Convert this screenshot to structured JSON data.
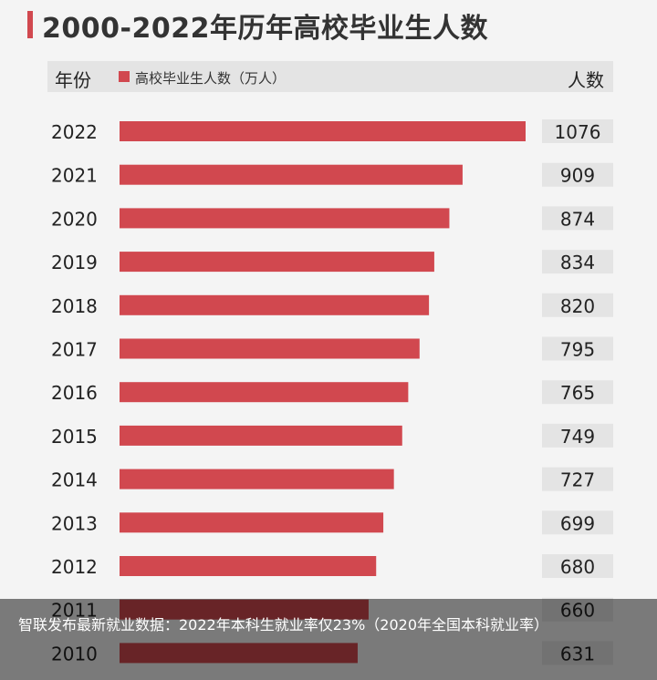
{
  "title": "2000-2022年历年高校毕业生人数",
  "header": {
    "year_label": "年份",
    "legend_label": "高校毕业生人数（万人）",
    "count_label": "人数"
  },
  "colors": {
    "bar": "#d1484f",
    "title_accent": "#d1484f",
    "value_box": "#e4e4e4"
  },
  "chart_data": {
    "type": "bar",
    "orientation": "horizontal",
    "series": [
      {
        "name": "高校毕业生人数（万人）",
        "values": [
          1076,
          909,
          874,
          834,
          820,
          795,
          765,
          749,
          727,
          699,
          680,
          660,
          631
        ]
      }
    ],
    "categories": [
      "2022",
      "2021",
      "2020",
      "2019",
      "2018",
      "2017",
      "2016",
      "2015",
      "2014",
      "2013",
      "2012",
      "2011",
      "2010"
    ],
    "value_labels": [
      "1076",
      "909",
      "874",
      "834",
      "820",
      "795",
      "765",
      "749",
      "727",
      "699",
      "680",
      "660",
      "631"
    ],
    "xlim": [
      0,
      1076
    ],
    "grid": false,
    "legend": "top"
  },
  "caption": "智联发布最新就业数据：2022年本科生就业率仅23%（2020年全国本科就业率）"
}
